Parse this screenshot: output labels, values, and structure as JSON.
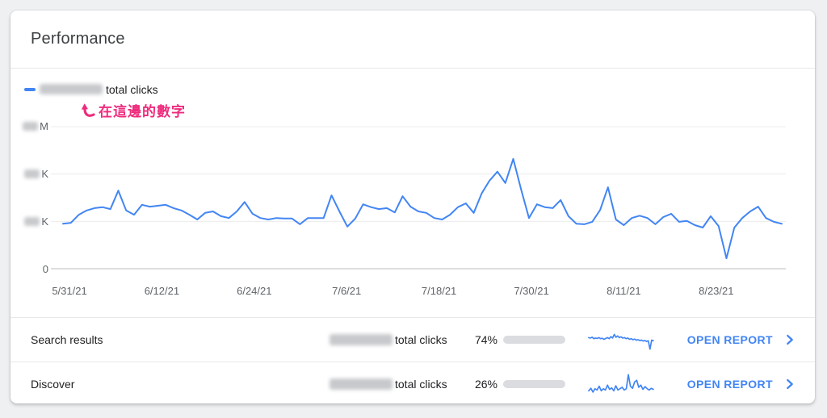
{
  "header": {
    "title": "Performance"
  },
  "legend": {
    "value_redacted": true,
    "label": "total clicks"
  },
  "annotation": {
    "text": "在這邊的數字",
    "color": "#ee2b7c"
  },
  "colors": {
    "accent_blue": "#4285f4",
    "annotation_pink": "#ee2b7c",
    "axis_text": "#5f6368",
    "gridline": "#ececec",
    "baseline": "#b9bdc1",
    "bar_track": "#dbdce0"
  },
  "chart_data": [
    {
      "type": "line",
      "title": "total clicks over time",
      "x_start_date": "5/31/21",
      "x_tick_labels": [
        "5/31/21",
        "6/12/21",
        "6/24/21",
        "7/6/21",
        "7/18/21",
        "7/30/21",
        "8/11/21",
        "8/23/21"
      ],
      "y_axis": {
        "note": "numeric y tick values blurred in screenshot; only unit suffix visible",
        "ticks": [
          {
            "label": "0",
            "redacted": false
          },
          {
            "label": "K",
            "redacted": true
          },
          {
            "label": "K",
            "redacted": true
          },
          {
            "label": "M",
            "redacted": true
          }
        ]
      },
      "y_unit": "gridline-normalized (0 = bottom axis, 3 = top gridline)",
      "grid": true,
      "series": [
        {
          "name": "total clicks",
          "color": "#4285f4",
          "values": [
            0.95,
            0.97,
            1.14,
            1.23,
            1.28,
            1.3,
            1.26,
            1.65,
            1.23,
            1.14,
            1.35,
            1.31,
            1.33,
            1.35,
            1.28,
            1.23,
            1.14,
            1.04,
            1.18,
            1.21,
            1.11,
            1.07,
            1.21,
            1.41,
            1.16,
            1.07,
            1.04,
            1.07,
            1.06,
            1.06,
            0.94,
            1.07,
            1.07,
            1.07,
            1.55,
            1.21,
            0.89,
            1.06,
            1.36,
            1.3,
            1.26,
            1.28,
            1.19,
            1.53,
            1.31,
            1.21,
            1.18,
            1.07,
            1.04,
            1.14,
            1.3,
            1.38,
            1.18,
            1.59,
            1.86,
            2.05,
            1.81,
            2.32,
            1.67,
            1.07,
            1.36,
            1.3,
            1.28,
            1.45,
            1.11,
            0.95,
            0.94,
            0.99,
            1.24,
            1.72,
            1.04,
            0.92,
            1.07,
            1.12,
            1.07,
            0.94,
            1.09,
            1.16,
            0.99,
            1.01,
            0.92,
            0.87,
            1.11,
            0.9,
            0.22,
            0.87,
            1.07,
            1.21,
            1.31,
            1.07,
            0.99,
            0.95
          ]
        }
      ]
    },
    {
      "type": "line",
      "name": "search-results-sparkline",
      "values": [
        0.6,
        0.58,
        0.62,
        0.55,
        0.58,
        0.56,
        0.6,
        0.55,
        0.57,
        0.52,
        0.56,
        0.6,
        0.55,
        0.65,
        0.58,
        0.75,
        0.62,
        0.68,
        0.6,
        0.64,
        0.58,
        0.6,
        0.55,
        0.58,
        0.52,
        0.55,
        0.5,
        0.53,
        0.48,
        0.5,
        0.46,
        0.48,
        0.44,
        0.46,
        0.42,
        0.45,
        0.05,
        0.48,
        0.45
      ]
    },
    {
      "type": "line",
      "name": "discover-sparkline",
      "values": [
        0.18,
        0.3,
        0.12,
        0.28,
        0.22,
        0.4,
        0.18,
        0.28,
        0.22,
        0.45,
        0.25,
        0.32,
        0.18,
        0.42,
        0.22,
        0.28,
        0.35,
        0.22,
        0.28,
        0.95,
        0.4,
        0.3,
        0.6,
        0.68,
        0.35,
        0.45,
        0.25,
        0.38,
        0.28,
        0.22,
        0.3,
        0.25
      ]
    }
  ],
  "rows": [
    {
      "label": "Search results",
      "clicks_redacted": true,
      "clicks_suffix": "total clicks",
      "percent": "74%",
      "percent_value": 74,
      "link": "OPEN REPORT"
    },
    {
      "label": "Discover",
      "clicks_redacted": true,
      "clicks_suffix": "total clicks",
      "percent": "26%",
      "percent_value": 26,
      "link": "OPEN REPORT"
    }
  ]
}
